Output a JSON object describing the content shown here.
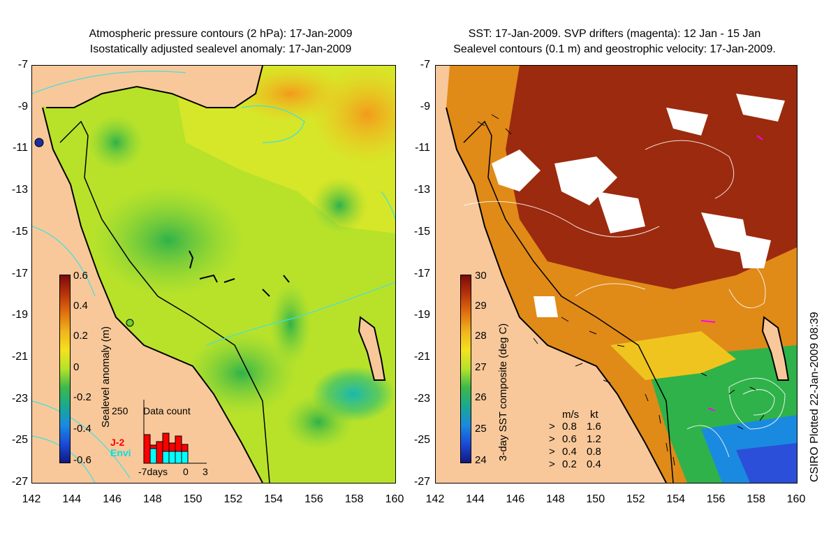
{
  "left_panel": {
    "title_line1": "Atmospheric pressure contours (2 hPa): 17-Jan-2009",
    "title_line2": "Isostatically adjusted sealevel anomaly: 17-Jan-2009",
    "colorbar": {
      "title": "Sealevel anomaly (m)",
      "labels": [
        "0.6",
        "0.4",
        "0.2",
        "0",
        "-0.2",
        "-0.4",
        "-0.6"
      ],
      "range": [
        -0.6,
        0.6
      ]
    },
    "inset": {
      "title": "Data count",
      "ymax_label": "250",
      "series_j2": "J-2",
      "series_envi": "Envi",
      "xlabel_left": "-7days",
      "xlabel_mid": "0",
      "xlabel_right": "3"
    }
  },
  "right_panel": {
    "title_line1": "SST: 17-Jan-2009. SVP drifters (magenta): 12 Jan - 15 Jan",
    "title_line2": "Sealevel contours (0.1 m) and geostrophic velocity: 17-Jan-2009.",
    "colorbar": {
      "title": "3-day SST composite (deg C)",
      "labels": [
        "30",
        "29",
        "28",
        "27",
        "26",
        "25",
        "24"
      ],
      "range": [
        24,
        30
      ]
    },
    "velocity_legend": {
      "header_ms": "m/s",
      "header_kt": "kt",
      "rows": [
        {
          "ms": "0.8",
          "kt": "1.6"
        },
        {
          "ms": "0.6",
          "kt": "1.2"
        },
        {
          "ms": "0.4",
          "kt": "0.8"
        },
        {
          "ms": "0.2",
          "kt": "0.4"
        }
      ]
    }
  },
  "axes": {
    "y_ticks": [
      "-7",
      "-9",
      "-11",
      "-13",
      "-15",
      "-17",
      "-19",
      "-21",
      "-23",
      "-25",
      "-27"
    ],
    "x_ticks": [
      "142",
      "144",
      "146",
      "148",
      "150",
      "152",
      "154",
      "156",
      "158",
      "160"
    ],
    "lon_range": [
      142,
      160
    ],
    "lat_range": [
      -27,
      -7
    ]
  },
  "footer": {
    "plotted": "CSIRO Plotted 22-Jan-2009 08:39"
  },
  "colors": {
    "land": "#f8c89a",
    "coast": "#000000",
    "pressure_contour": "#40e0e0",
    "drifter": "#ff00ff"
  }
}
